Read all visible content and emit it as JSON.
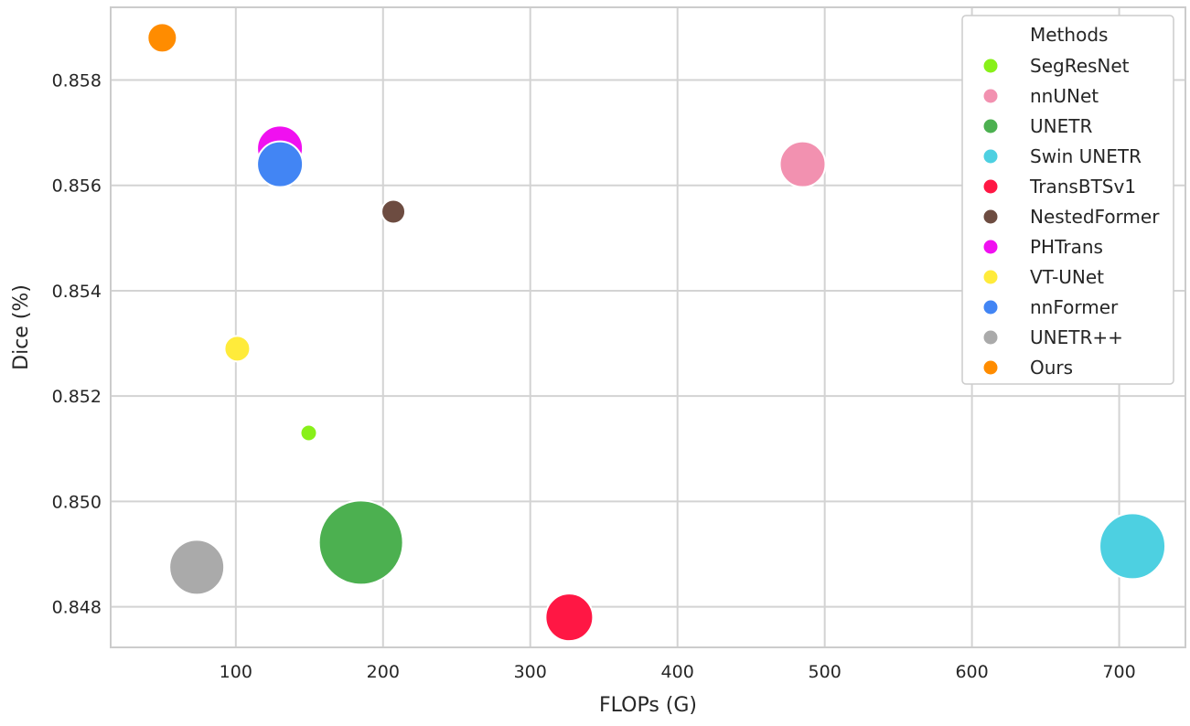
{
  "chart_data": {
    "type": "scatter",
    "xlabel": "FLOPs (G)",
    "ylabel": "Dice (%)",
    "xlim": [
      15,
      745
    ],
    "ylim": [
      0.84723,
      0.85938
    ],
    "xticks": [
      100,
      200,
      300,
      400,
      500,
      600,
      700
    ],
    "yticks": [
      0.848,
      0.85,
      0.852,
      0.854,
      0.856,
      0.858
    ],
    "xtick_labels": [
      "100",
      "200",
      "300",
      "400",
      "500",
      "600",
      "700"
    ],
    "ytick_labels": [
      "0.848",
      "0.850",
      "0.852",
      "0.854",
      "0.856",
      "0.858"
    ],
    "grid": true,
    "legend_title": "Methods",
    "legend_position": "top-right",
    "series": [
      {
        "name": "SegResNet",
        "color": "#88f019",
        "x": 149.5,
        "y": 0.8513,
        "size": 9
      },
      {
        "name": "nnUNet",
        "color": "#f291b0",
        "x": 485,
        "y": 0.8564,
        "size": 25
      },
      {
        "name": "UNETR",
        "color": "#4cb050",
        "x": 185,
        "y": 0.84922,
        "size": 46
      },
      {
        "name": "Swin UNETR",
        "color": "#4dd0e1",
        "x": 709,
        "y": 0.84915,
        "size": 36
      },
      {
        "name": "TransBTSv1",
        "color": "#ff1744",
        "x": 326.5,
        "y": 0.8478,
        "size": 26
      },
      {
        "name": "NestedFormer",
        "color": "#6d4c41",
        "x": 207,
        "y": 0.8555,
        "size": 13
      },
      {
        "name": "PHTrans",
        "color": "#f010f0",
        "x": 130,
        "y": 0.8567,
        "size": 25
      },
      {
        "name": "VT-UNet",
        "color": "#ffeb3b",
        "x": 101,
        "y": 0.8529,
        "size": 14
      },
      {
        "name": "nnFormer",
        "color": "#4285f4",
        "x": 130,
        "y": 0.8564,
        "size": 25
      },
      {
        "name": "UNETR++",
        "color": "#aaaaaa",
        "x": 73.5,
        "y": 0.84875,
        "size": 30
      },
      {
        "name": "Ours",
        "color": "#ff8c00",
        "x": 50,
        "y": 0.8588,
        "size": 16
      }
    ]
  }
}
